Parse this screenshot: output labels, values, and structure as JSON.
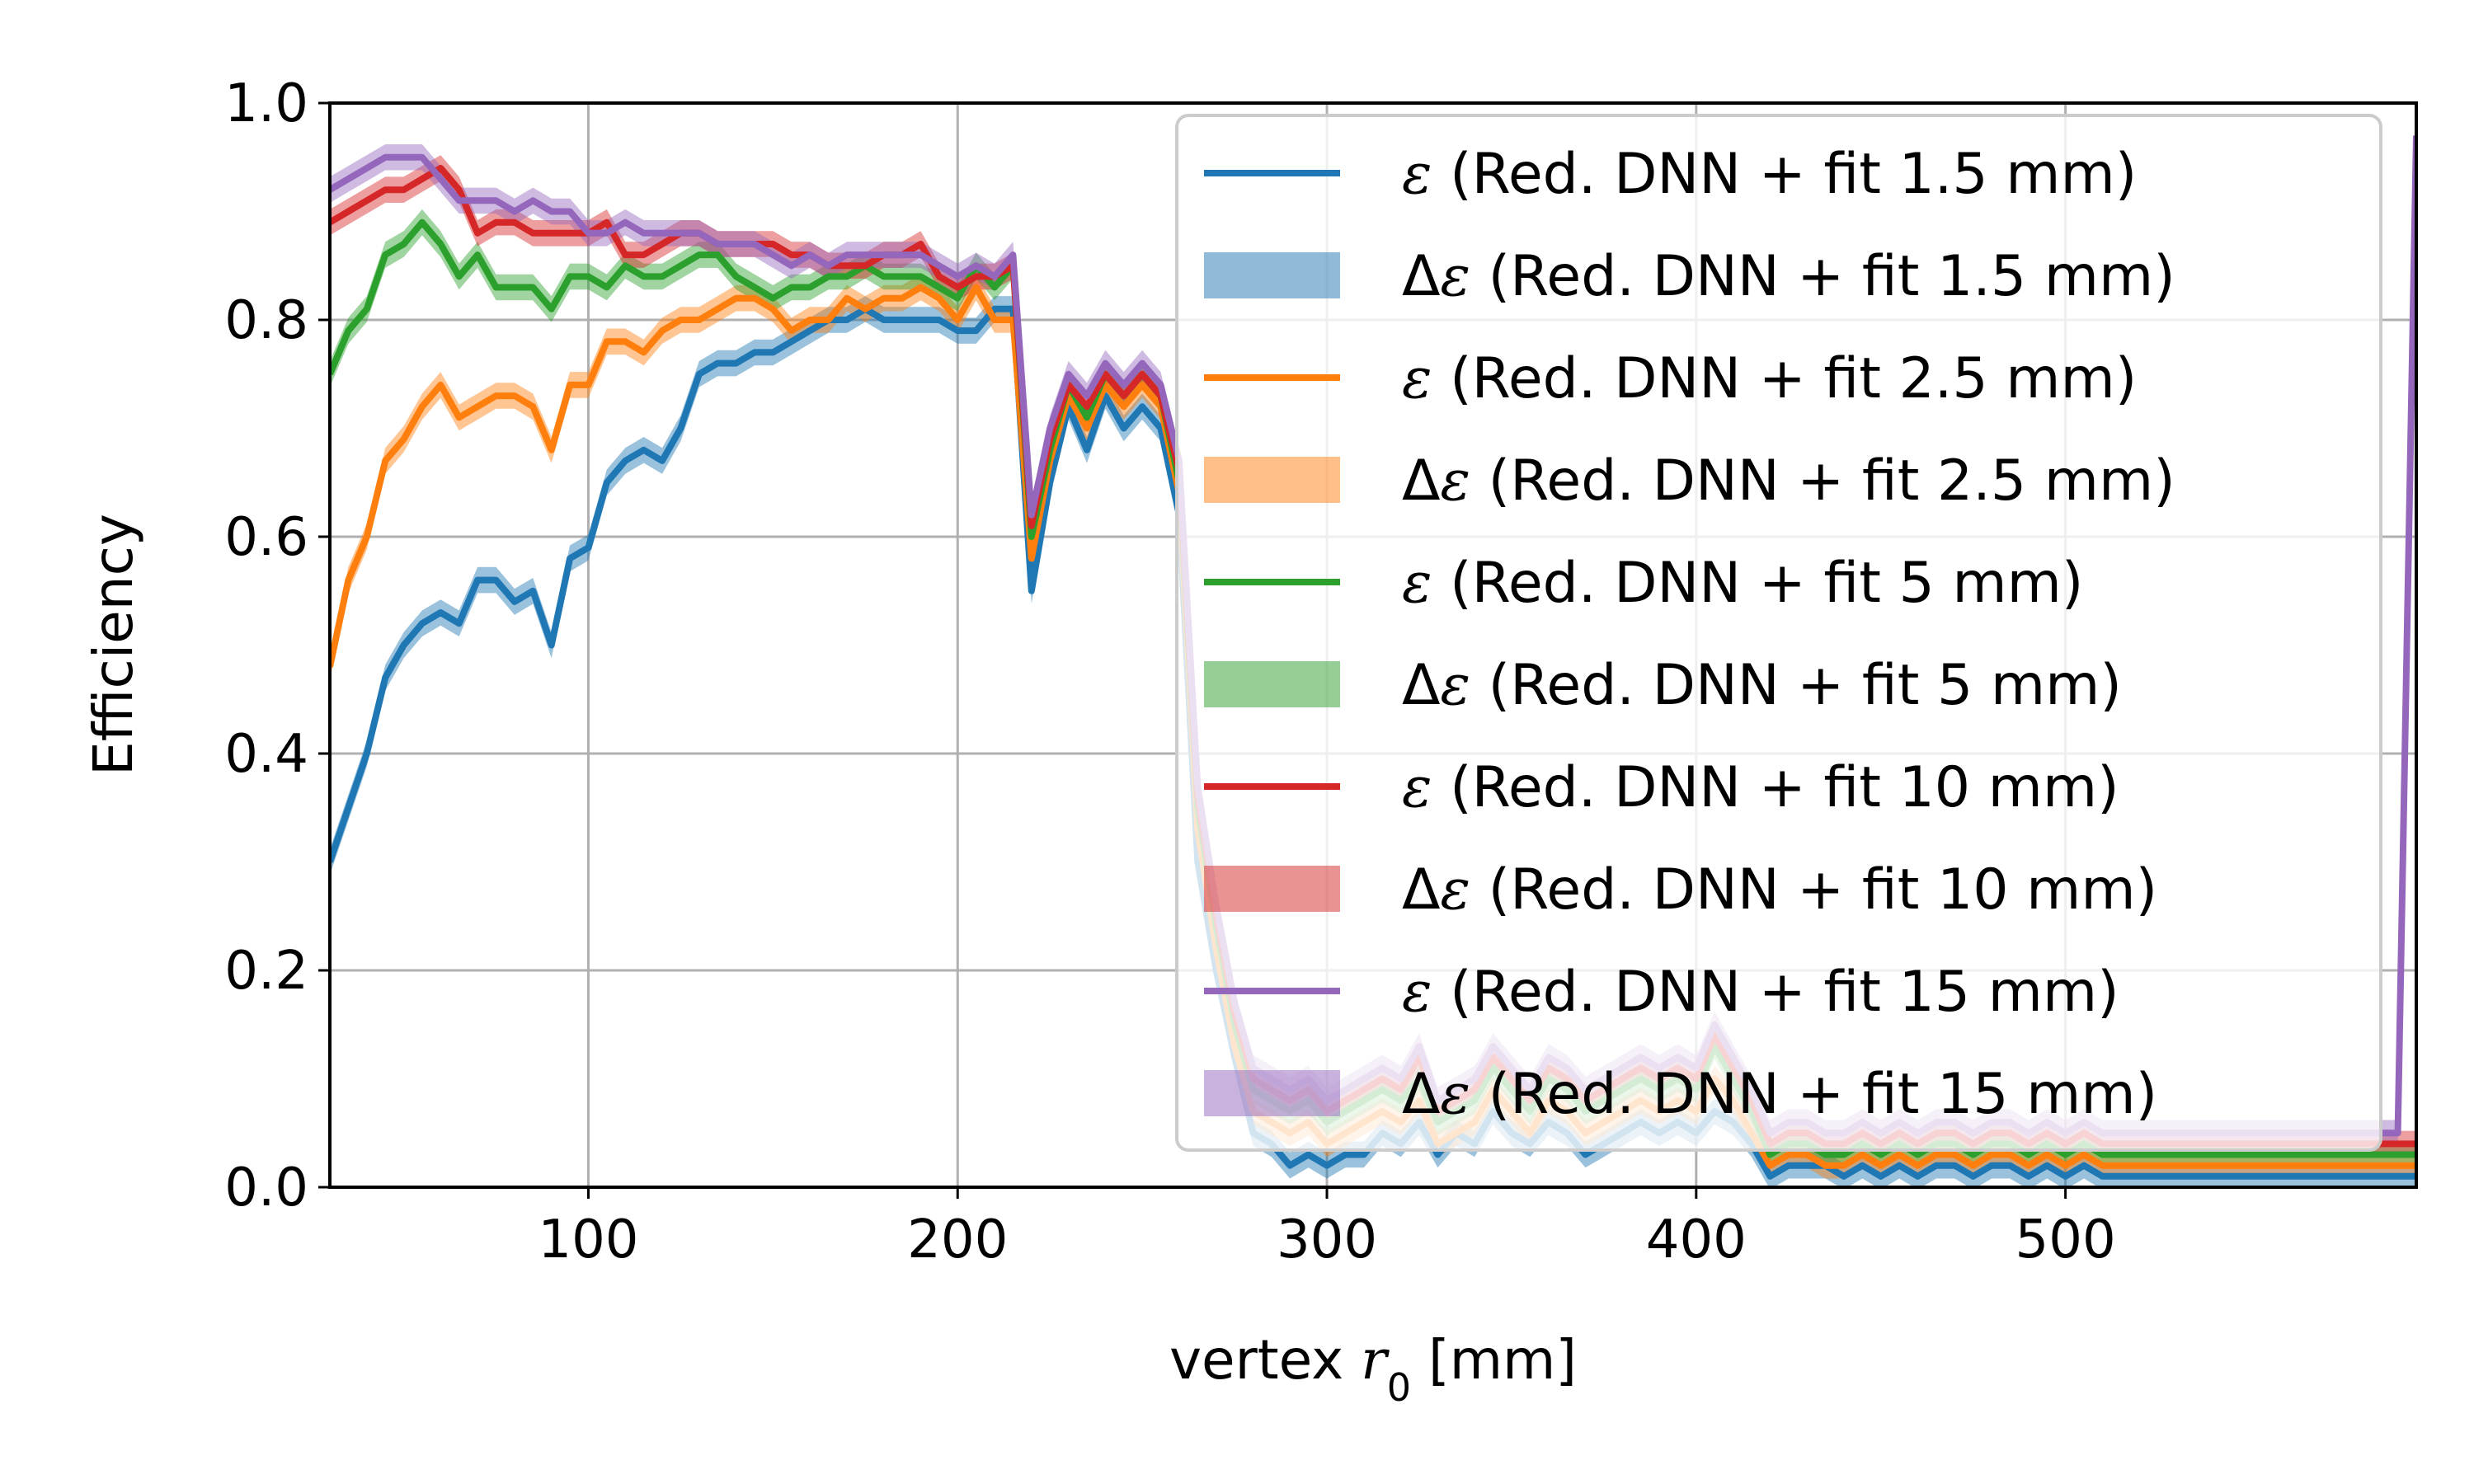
{
  "chart_data": {
    "type": "line",
    "xlabel_prefix": "vertex ",
    "xlabel_var": "r",
    "xlabel_sub": "0",
    "xlabel_suffix": " [mm]",
    "ylabel": "Efficiency",
    "xlim": [
      30,
      595
    ],
    "ylim": [
      0,
      1.0
    ],
    "xticks": [
      100,
      200,
      300,
      400,
      500
    ],
    "yticks": [
      "0.0",
      "0.2",
      "0.4",
      "0.6",
      "0.8",
      "1.0"
    ],
    "grid": true,
    "legend_position": "top-right",
    "band_halfwidth": 0.012,
    "legend_entries": [
      {
        "sym": "ε",
        "delta": false,
        "text": " (Red. DNN + fit 1.5 mm)",
        "color": "#1f77b4"
      },
      {
        "sym": "ε",
        "delta": true,
        "text": " (Red. DNN + fit 1.5 mm)",
        "color": "#1f77b4"
      },
      {
        "sym": "ε",
        "delta": false,
        "text": " (Red. DNN + fit 2.5 mm)",
        "color": "#ff7f0e"
      },
      {
        "sym": "ε",
        "delta": true,
        "text": " (Red. DNN + fit 2.5 mm)",
        "color": "#ff7f0e"
      },
      {
        "sym": "ε",
        "delta": false,
        "text": " (Red. DNN + fit 5 mm)",
        "color": "#2ca02c"
      },
      {
        "sym": "ε",
        "delta": true,
        "text": " (Red. DNN + fit 5 mm)",
        "color": "#2ca02c"
      },
      {
        "sym": "ε",
        "delta": false,
        "text": " (Red. DNN + fit 10 mm)",
        "color": "#d62728"
      },
      {
        "sym": "ε",
        "delta": true,
        "text": " (Red. DNN + fit 10 mm)",
        "color": "#d62728"
      },
      {
        "sym": "ε",
        "delta": false,
        "text": " (Red. DNN + fit 15 mm)",
        "color": "#9467bd"
      },
      {
        "sym": "ε",
        "delta": true,
        "text": " (Red. DNN + fit 15 mm)",
        "color": "#9467bd"
      }
    ],
    "x": [
      30,
      35,
      40,
      45,
      50,
      55,
      60,
      65,
      70,
      75,
      80,
      85,
      90,
      95,
      100,
      105,
      110,
      115,
      120,
      125,
      130,
      135,
      140,
      145,
      150,
      155,
      160,
      165,
      170,
      175,
      180,
      185,
      190,
      195,
      200,
      205,
      210,
      215,
      220,
      225,
      230,
      235,
      240,
      245,
      250,
      255,
      260,
      265,
      270,
      275,
      280,
      285,
      290,
      295,
      300,
      305,
      310,
      315,
      320,
      325,
      330,
      335,
      340,
      345,
      350,
      355,
      360,
      365,
      370,
      375,
      380,
      385,
      390,
      395,
      400,
      405,
      410,
      415,
      420,
      425,
      430,
      435,
      440,
      445,
      450,
      455,
      460,
      465,
      470,
      475,
      480,
      485,
      490,
      495,
      500,
      505,
      510,
      515,
      520,
      525,
      530,
      535,
      540,
      545,
      550,
      555,
      560,
      565,
      570,
      575,
      580,
      585,
      590,
      595
    ],
    "series": [
      {
        "color": "#1f77b4",
        "values": [
          0.3,
          0.35,
          0.4,
          0.47,
          0.5,
          0.52,
          0.53,
          0.52,
          0.56,
          0.56,
          0.54,
          0.55,
          0.5,
          0.58,
          0.59,
          0.65,
          0.67,
          0.68,
          0.67,
          0.7,
          0.75,
          0.76,
          0.76,
          0.77,
          0.77,
          0.78,
          0.79,
          0.8,
          0.8,
          0.81,
          0.8,
          0.8,
          0.8,
          0.8,
          0.79,
          0.79,
          0.81,
          0.81,
          0.55,
          0.65,
          0.72,
          0.68,
          0.73,
          0.7,
          0.72,
          0.7,
          0.62,
          0.3,
          0.2,
          0.12,
          0.05,
          0.04,
          0.02,
          0.03,
          0.02,
          0.03,
          0.03,
          0.05,
          0.04,
          0.06,
          0.03,
          0.05,
          0.04,
          0.07,
          0.05,
          0.04,
          0.06,
          0.05,
          0.03,
          0.04,
          0.05,
          0.06,
          0.05,
          0.06,
          0.05,
          0.07,
          0.06,
          0.04,
          0.01,
          0.02,
          0.02,
          0.02,
          0.01,
          0.02,
          0.01,
          0.02,
          0.01,
          0.02,
          0.02,
          0.01,
          0.02,
          0.02,
          0.01,
          0.02,
          0.01,
          0.02,
          0.01,
          0.01,
          0.01,
          0.01,
          0.01,
          0.01,
          0.01,
          0.01,
          0.01,
          0.01,
          0.01,
          0.01,
          0.01,
          0.01,
          0.01,
          0.01,
          0.01,
          0.01
        ]
      },
      {
        "color": "#ff7f0e",
        "values": [
          0.48,
          0.56,
          0.6,
          0.67,
          0.69,
          0.72,
          0.74,
          0.71,
          0.72,
          0.73,
          0.73,
          0.72,
          0.68,
          0.74,
          0.74,
          0.78,
          0.78,
          0.77,
          0.79,
          0.8,
          0.8,
          0.81,
          0.82,
          0.82,
          0.81,
          0.79,
          0.8,
          0.8,
          0.82,
          0.81,
          0.82,
          0.82,
          0.83,
          0.82,
          0.8,
          0.83,
          0.8,
          0.8,
          0.58,
          0.67,
          0.73,
          0.7,
          0.74,
          0.72,
          0.74,
          0.72,
          0.64,
          0.33,
          0.22,
          0.13,
          0.07,
          0.06,
          0.05,
          0.06,
          0.04,
          0.05,
          0.06,
          0.07,
          0.06,
          0.08,
          0.04,
          0.05,
          0.06,
          0.09,
          0.07,
          0.05,
          0.08,
          0.07,
          0.05,
          0.06,
          0.07,
          0.08,
          0.07,
          0.08,
          0.07,
          0.1,
          0.08,
          0.05,
          0.02,
          0.03,
          0.03,
          0.02,
          0.02,
          0.03,
          0.02,
          0.03,
          0.02,
          0.03,
          0.03,
          0.02,
          0.03,
          0.03,
          0.02,
          0.03,
          0.02,
          0.03,
          0.02,
          0.02,
          0.02,
          0.02,
          0.02,
          0.02,
          0.02,
          0.02,
          0.02,
          0.02,
          0.02,
          0.02,
          0.02,
          0.02,
          0.02,
          0.02,
          0.02,
          0.02
        ]
      },
      {
        "color": "#2ca02c",
        "values": [
          0.75,
          0.79,
          0.81,
          0.86,
          0.87,
          0.89,
          0.87,
          0.84,
          0.86,
          0.83,
          0.83,
          0.83,
          0.81,
          0.84,
          0.84,
          0.83,
          0.85,
          0.84,
          0.84,
          0.85,
          0.86,
          0.86,
          0.84,
          0.83,
          0.82,
          0.83,
          0.83,
          0.84,
          0.84,
          0.85,
          0.84,
          0.84,
          0.84,
          0.83,
          0.82,
          0.85,
          0.83,
          0.85,
          0.6,
          0.68,
          0.74,
          0.71,
          0.75,
          0.73,
          0.75,
          0.73,
          0.65,
          0.35,
          0.24,
          0.15,
          0.09,
          0.08,
          0.07,
          0.08,
          0.06,
          0.07,
          0.08,
          0.09,
          0.08,
          0.1,
          0.06,
          0.07,
          0.08,
          0.11,
          0.09,
          0.07,
          0.1,
          0.09,
          0.07,
          0.08,
          0.09,
          0.1,
          0.09,
          0.1,
          0.09,
          0.13,
          0.1,
          0.07,
          0.03,
          0.04,
          0.04,
          0.03,
          0.03,
          0.04,
          0.03,
          0.04,
          0.03,
          0.04,
          0.04,
          0.03,
          0.04,
          0.04,
          0.03,
          0.04,
          0.03,
          0.04,
          0.03,
          0.03,
          0.03,
          0.03,
          0.03,
          0.03,
          0.03,
          0.03,
          0.03,
          0.03,
          0.03,
          0.03,
          0.03,
          0.03,
          0.03,
          0.03,
          0.03,
          0.03
        ]
      },
      {
        "color": "#d62728",
        "values": [
          0.89,
          0.9,
          0.91,
          0.92,
          0.92,
          0.93,
          0.94,
          0.92,
          0.88,
          0.89,
          0.89,
          0.88,
          0.88,
          0.88,
          0.88,
          0.89,
          0.86,
          0.86,
          0.87,
          0.88,
          0.88,
          0.87,
          0.87,
          0.87,
          0.87,
          0.86,
          0.86,
          0.85,
          0.85,
          0.85,
          0.86,
          0.86,
          0.87,
          0.84,
          0.83,
          0.84,
          0.84,
          0.85,
          0.61,
          0.69,
          0.74,
          0.72,
          0.75,
          0.73,
          0.75,
          0.73,
          0.66,
          0.36,
          0.25,
          0.16,
          0.1,
          0.09,
          0.08,
          0.09,
          0.07,
          0.08,
          0.09,
          0.1,
          0.09,
          0.12,
          0.07,
          0.08,
          0.09,
          0.12,
          0.1,
          0.08,
          0.11,
          0.1,
          0.08,
          0.09,
          0.1,
          0.11,
          0.1,
          0.11,
          0.1,
          0.14,
          0.11,
          0.08,
          0.04,
          0.05,
          0.05,
          0.04,
          0.04,
          0.05,
          0.04,
          0.05,
          0.04,
          0.05,
          0.05,
          0.04,
          0.05,
          0.05,
          0.04,
          0.05,
          0.04,
          0.05,
          0.04,
          0.04,
          0.04,
          0.04,
          0.04,
          0.04,
          0.04,
          0.04,
          0.04,
          0.04,
          0.04,
          0.04,
          0.04,
          0.04,
          0.04,
          0.04,
          0.04,
          0.04
        ]
      },
      {
        "color": "#9467bd",
        "values": [
          0.92,
          0.93,
          0.94,
          0.95,
          0.95,
          0.95,
          0.93,
          0.91,
          0.91,
          0.91,
          0.9,
          0.91,
          0.9,
          0.9,
          0.88,
          0.88,
          0.89,
          0.88,
          0.88,
          0.88,
          0.88,
          0.87,
          0.87,
          0.87,
          0.86,
          0.85,
          0.86,
          0.85,
          0.86,
          0.86,
          0.86,
          0.86,
          0.86,
          0.85,
          0.84,
          0.85,
          0.84,
          0.86,
          0.62,
          0.7,
          0.75,
          0.73,
          0.76,
          0.74,
          0.76,
          0.74,
          0.67,
          0.37,
          0.26,
          0.17,
          0.11,
          0.1,
          0.09,
          0.1,
          0.08,
          0.09,
          0.1,
          0.11,
          0.1,
          0.13,
          0.08,
          0.09,
          0.1,
          0.13,
          0.11,
          0.09,
          0.12,
          0.11,
          0.09,
          0.1,
          0.11,
          0.12,
          0.11,
          0.12,
          0.11,
          0.15,
          0.12,
          0.09,
          0.05,
          0.06,
          0.06,
          0.05,
          0.05,
          0.06,
          0.05,
          0.06,
          0.05,
          0.06,
          0.06,
          0.05,
          0.06,
          0.06,
          0.05,
          0.06,
          0.05,
          0.06,
          0.05,
          0.05,
          0.05,
          0.05,
          0.05,
          0.05,
          0.05,
          0.05,
          0.05,
          0.05,
          0.05,
          0.05,
          0.05,
          0.05,
          0.05,
          0.05,
          0.05,
          0.97
        ]
      }
    ]
  }
}
